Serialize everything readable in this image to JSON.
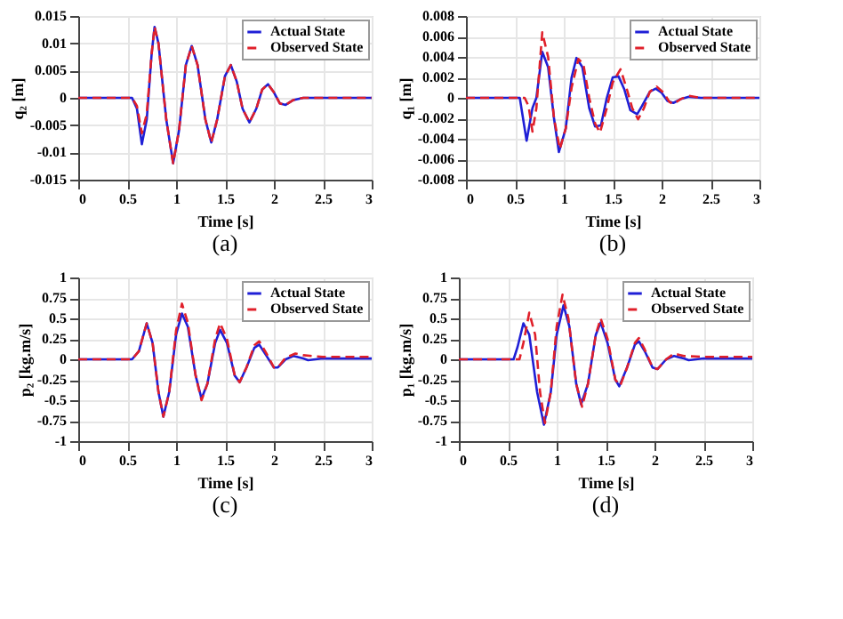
{
  "chart_data": [
    {
      "type": "line",
      "title": "(a)",
      "xlabel": "Time [s]",
      "ylabel": "q₂ [m]",
      "xlim": [
        0,
        3
      ],
      "xticks": [
        0,
        0.5,
        1,
        1.5,
        2,
        2.5,
        3
      ],
      "ylim": [
        -0.015,
        0.015
      ],
      "yticks": [
        -0.015,
        -0.01,
        -0.005,
        0,
        0.005,
        0.01,
        0.015
      ],
      "grid": true,
      "legend": "top right",
      "series": [
        {
          "name": "Actual State",
          "color": "#1f1fd6",
          "line_style": "solid",
          "x": [
            0,
            0.55,
            0.6,
            0.65,
            0.7,
            0.75,
            0.78,
            0.82,
            0.9,
            0.97,
            1.03,
            1.1,
            1.16,
            1.22,
            1.3,
            1.36,
            1.42,
            1.5,
            1.56,
            1.62,
            1.68,
            1.75,
            1.82,
            1.88,
            1.94,
            2.0,
            2.06,
            2.12,
            2.2,
            2.3,
            3
          ],
          "values": [
            0,
            0,
            -0.002,
            -0.0085,
            -0.004,
            0.008,
            0.013,
            0.01,
            -0.004,
            -0.012,
            -0.006,
            0.006,
            0.0095,
            0.006,
            -0.004,
            -0.0082,
            -0.004,
            0.004,
            0.006,
            0.003,
            -0.002,
            -0.0045,
            -0.002,
            0.0015,
            0.0025,
            0.001,
            -0.001,
            -0.0013,
            -0.0004,
            0,
            0
          ]
        },
        {
          "name": "Observed State",
          "color": "#e0202a",
          "line_style": "dashed",
          "x": [
            0,
            0.55,
            0.6,
            0.65,
            0.7,
            0.75,
            0.78,
            0.82,
            0.9,
            0.97,
            1.03,
            1.1,
            1.16,
            1.22,
            1.3,
            1.36,
            1.42,
            1.5,
            1.56,
            1.62,
            1.68,
            1.75,
            1.82,
            1.88,
            1.94,
            2.0,
            2.06,
            2.12,
            2.2,
            2.3,
            3
          ],
          "values": [
            0,
            0,
            -0.0015,
            -0.0065,
            -0.003,
            0.008,
            0.013,
            0.01,
            -0.004,
            -0.012,
            -0.006,
            0.006,
            0.0095,
            0.006,
            -0.004,
            -0.0082,
            -0.004,
            0.004,
            0.006,
            0.003,
            -0.002,
            -0.0045,
            -0.002,
            0.0015,
            0.0025,
            0.001,
            -0.001,
            -0.0013,
            -0.0004,
            0,
            0
          ]
        }
      ]
    },
    {
      "type": "line",
      "title": "(b)",
      "xlabel": "Time [s]",
      "ylabel": "q₁ [m]",
      "xlim": [
        0,
        3
      ],
      "xticks": [
        0,
        0.5,
        1,
        1.5,
        2,
        2.5,
        3
      ],
      "ylim": [
        -0.008,
        0.008
      ],
      "yticks": [
        -0.008,
        -0.006,
        -0.004,
        -0.002,
        0,
        0.002,
        0.004,
        0.006,
        0.008
      ],
      "grid": true,
      "legend": "top right",
      "series": [
        {
          "name": "Actual State",
          "color": "#1f1fd6",
          "line_style": "solid",
          "x": [
            0,
            0.55,
            0.62,
            0.68,
            0.72,
            0.78,
            0.84,
            0.9,
            0.95,
            1.02,
            1.08,
            1.13,
            1.19,
            1.26,
            1.32,
            1.38,
            1.44,
            1.5,
            1.56,
            1.62,
            1.68,
            1.75,
            1.8,
            1.88,
            1.94,
            2.0,
            2.06,
            2.12,
            2.2,
            2.28,
            2.4,
            3
          ],
          "values": [
            0,
            0,
            -0.0042,
            -0.001,
            0,
            0.0045,
            0.003,
            -0.002,
            -0.0053,
            -0.003,
            0.002,
            0.0039,
            0.003,
            -0.001,
            -0.0028,
            -0.0027,
            0,
            0.002,
            0.0021,
            0.0008,
            -0.0012,
            -0.0016,
            -0.0008,
            0.0006,
            0.0009,
            0.0005,
            -0.0003,
            -0.0005,
            -0.0001,
            0.0001,
            0,
            0
          ]
        },
        {
          "name": "Observed State",
          "color": "#e0202a",
          "line_style": "dashed",
          "x": [
            0,
            0.6,
            0.64,
            0.68,
            0.72,
            0.78,
            0.84,
            0.9,
            0.96,
            1.02,
            1.08,
            1.15,
            1.2,
            1.26,
            1.32,
            1.37,
            1.44,
            1.5,
            1.58,
            1.64,
            1.7,
            1.76,
            1.82,
            1.88,
            1.95,
            2.02,
            2.08,
            2.12,
            2.2,
            2.28,
            2.4,
            3
          ],
          "values": [
            0,
            0,
            -0.0008,
            -0.0033,
            -0.001,
            0.0064,
            0.004,
            -0.002,
            -0.005,
            -0.003,
            0.001,
            0.0038,
            0.0033,
            0,
            -0.0025,
            -0.0034,
            -0.001,
            0.0015,
            0.0028,
            0.001,
            -0.001,
            -0.0021,
            -0.001,
            0.0006,
            0.0011,
            0.0005,
            -0.0004,
            -0.0006,
            -0.0001,
            0.0002,
            0,
            0
          ]
        }
      ]
    },
    {
      "type": "line",
      "title": "(c)",
      "xlabel": "Time [s]",
      "ylabel": "p₂ [kg.m/s]",
      "xlim": [
        0,
        3
      ],
      "xticks": [
        0,
        0.5,
        1,
        1.5,
        2,
        2.5,
        3
      ],
      "ylim": [
        -1,
        1
      ],
      "yticks": [
        -1,
        -0.75,
        -0.5,
        -0.25,
        0,
        0.25,
        0.5,
        0.75,
        1
      ],
      "grid": true,
      "legend": "top right",
      "series": [
        {
          "name": "Actual State",
          "color": "#1f1fd6",
          "line_style": "solid",
          "x": [
            0,
            0.55,
            0.62,
            0.7,
            0.76,
            0.82,
            0.87,
            0.93,
            1.0,
            1.06,
            1.12,
            1.2,
            1.26,
            1.32,
            1.4,
            1.45,
            1.52,
            1.6,
            1.65,
            1.72,
            1.8,
            1.85,
            1.92,
            2.0,
            2.04,
            2.12,
            2.2,
            2.3,
            2.35,
            2.5,
            3
          ],
          "values": [
            0,
            0,
            0.1,
            0.44,
            0.2,
            -0.4,
            -0.7,
            -0.4,
            0.3,
            0.56,
            0.4,
            -0.2,
            -0.48,
            -0.3,
            0.2,
            0.36,
            0.2,
            -0.2,
            -0.28,
            -0.1,
            0.14,
            0.18,
            0.05,
            -0.1,
            -0.1,
            0,
            0.04,
            0.01,
            -0.01,
            0.01,
            0.01
          ]
        },
        {
          "name": "Observed State",
          "color": "#e0202a",
          "line_style": "dashed",
          "x": [
            0,
            0.55,
            0.62,
            0.7,
            0.76,
            0.82,
            0.87,
            0.93,
            1.0,
            1.06,
            1.12,
            1.2,
            1.26,
            1.32,
            1.4,
            1.45,
            1.52,
            1.6,
            1.65,
            1.72,
            1.8,
            1.85,
            1.92,
            2.0,
            2.04,
            2.12,
            2.22,
            2.3,
            2.5,
            3
          ],
          "values": [
            0,
            0,
            0.1,
            0.44,
            0.2,
            -0.4,
            -0.7,
            -0.4,
            0.35,
            0.68,
            0.45,
            -0.2,
            -0.5,
            -0.3,
            0.25,
            0.44,
            0.25,
            -0.2,
            -0.28,
            -0.1,
            0.17,
            0.22,
            0.08,
            -0.1,
            -0.1,
            0.02,
            0.07,
            0.05,
            0.03,
            0.03
          ]
        }
      ]
    },
    {
      "type": "line",
      "title": "(d)",
      "xlabel": "Time [s]",
      "ylabel": "p₁ [kg.m/s]",
      "xlim": [
        0,
        3
      ],
      "xticks": [
        0,
        0.5,
        1,
        1.5,
        2,
        2.5,
        3
      ],
      "ylim": [
        -1,
        1
      ],
      "yticks": [
        -1,
        -0.75,
        -0.5,
        -0.25,
        0,
        0.25,
        0.5,
        0.75,
        1
      ],
      "grid": true,
      "legend": "top right",
      "series": [
        {
          "name": "Actual State",
          "color": "#1f1fd6",
          "line_style": "solid",
          "x": [
            0,
            0.56,
            0.6,
            0.66,
            0.72,
            0.8,
            0.87,
            0.94,
            1.0,
            1.07,
            1.13,
            1.2,
            1.25,
            1.32,
            1.4,
            1.45,
            1.52,
            1.6,
            1.64,
            1.72,
            1.8,
            1.84,
            1.9,
            1.98,
            2.03,
            2.12,
            2.2,
            2.3,
            2.35,
            2.5,
            3
          ],
          "values": [
            0,
            0,
            0.15,
            0.44,
            0.3,
            -0.4,
            -0.8,
            -0.4,
            0.3,
            0.66,
            0.4,
            -0.3,
            -0.55,
            -0.3,
            0.3,
            0.45,
            0.2,
            -0.25,
            -0.33,
            -0.1,
            0.18,
            0.22,
            0.1,
            -0.1,
            -0.12,
            0,
            0.04,
            0.01,
            -0.01,
            0.01,
            0.01
          ]
        },
        {
          "name": "Observed State",
          "color": "#e0202a",
          "line_style": "dashed",
          "x": [
            0,
            0.62,
            0.66,
            0.72,
            0.78,
            0.83,
            0.88,
            0.94,
            1.0,
            1.06,
            1.12,
            1.2,
            1.26,
            1.32,
            1.4,
            1.45,
            1.52,
            1.6,
            1.65,
            1.72,
            1.8,
            1.84,
            1.9,
            1.98,
            2.03,
            2.12,
            2.2,
            2.3,
            2.5,
            3
          ],
          "values": [
            0,
            0,
            0.2,
            0.57,
            0.3,
            -0.4,
            -0.78,
            -0.4,
            0.4,
            0.79,
            0.5,
            -0.3,
            -0.58,
            -0.3,
            0.3,
            0.5,
            0.25,
            -0.25,
            -0.32,
            -0.1,
            0.2,
            0.26,
            0.12,
            -0.1,
            -0.12,
            0,
            0.07,
            0.04,
            0.03,
            0.03
          ]
        }
      ]
    }
  ]
}
